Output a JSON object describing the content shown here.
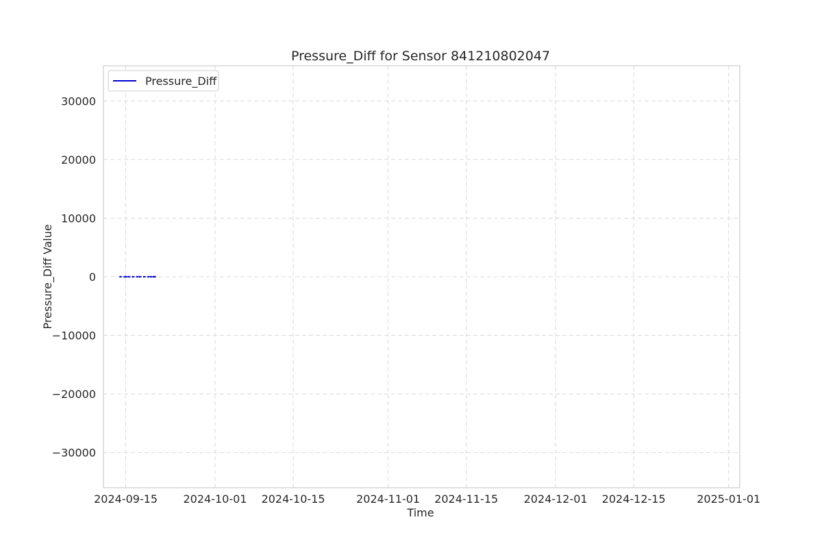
{
  "chart_data": {
    "type": "line",
    "title": "Pressure_Diff for Sensor 841210802047",
    "xlabel": "Time",
    "ylabel": "Pressure_Diff Value",
    "x_type": "date",
    "xlim": [
      "2024-09-11",
      "2025-01-03"
    ],
    "ylim": [
      -36000,
      36000
    ],
    "x_ticks": [
      "2024-09-15",
      "2024-10-01",
      "2024-10-15",
      "2024-11-01",
      "2024-11-15",
      "2024-12-01",
      "2024-12-15",
      "2025-01-01"
    ],
    "y_ticks": [
      30000,
      20000,
      10000,
      0,
      -10000,
      -20000,
      -30000
    ],
    "y_tick_labels": [
      "30000",
      "20000",
      "10000",
      "0",
      "−10000",
      "−20000",
      "−30000"
    ],
    "grid": true,
    "legend_position": "upper-left",
    "series": [
      {
        "name": "Pressure_Diff",
        "color": "#0000cc",
        "points": [
          {
            "x": "2024-09-14T00:00",
            "y": 0
          },
          {
            "x": "2024-09-14T18:00",
            "y": 0
          },
          {
            "x": "2024-09-15T00:00",
            "y": 0
          },
          {
            "x": "2024-09-15T12:00",
            "y": 0
          },
          {
            "x": "2024-09-16T06:00",
            "y": 0
          },
          {
            "x": "2024-09-17T00:00",
            "y": 0
          },
          {
            "x": "2024-09-17T12:00",
            "y": 0
          },
          {
            "x": "2024-09-18T06:00",
            "y": 0
          },
          {
            "x": "2024-09-19T00:00",
            "y": 0
          },
          {
            "x": "2024-09-19T12:00",
            "y": 0
          },
          {
            "x": "2024-09-20T00:00",
            "y": 0
          },
          {
            "x": "2024-09-20T06:00",
            "y": 0
          }
        ]
      }
    ]
  }
}
